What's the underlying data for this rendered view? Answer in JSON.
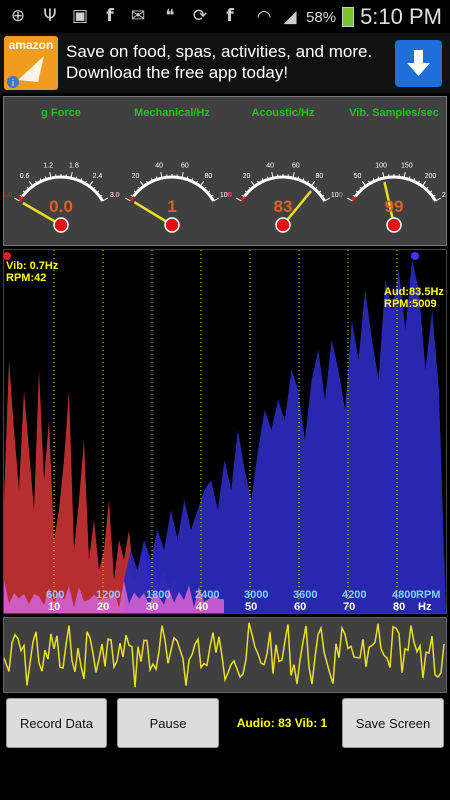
{
  "status_bar": {
    "icons": [
      "plus-icon",
      "usb-icon",
      "gallery-icon",
      "facebook-icon",
      "mail-icon",
      "hangouts-icon",
      "sync-icon",
      "facebook-icon",
      "wifi-icon",
      "signal-icon",
      "battery-charging-icon"
    ],
    "battery": "58%",
    "time": "5:10 PM"
  },
  "ad": {
    "logo_text": "amazon",
    "line1": "Save on food, spas, activities, and more.",
    "line2": "Download the free app today!",
    "download_icon": "download-arrow-icon",
    "info_icon": "info-icon"
  },
  "gauges": [
    {
      "title": "g Force",
      "value": "0.0",
      "ticks": [
        "0.0",
        "0.6",
        "1.2",
        "1.8",
        "2.4",
        "3.0"
      ],
      "level": 0.0
    },
    {
      "title": "Mechanical/Hz",
      "value": "1",
      "ticks": [
        "0",
        "20",
        "40",
        "60",
        "80",
        "100"
      ],
      "level": 0.01
    },
    {
      "title": "Acoustic/Hz",
      "value": "83",
      "ticks": [
        "0",
        "20",
        "40",
        "60",
        "80",
        "100"
      ],
      "level": 0.83
    },
    {
      "title": "Vib. Samples/sec",
      "value": "99",
      "ticks": [
        "0",
        "50",
        "100",
        "150",
        "200",
        "250"
      ],
      "level": 0.396
    }
  ],
  "spectrum": {
    "vib_label": "Vib: 0.7Hz",
    "vib_rpm": "RPM:42",
    "aud_label": "Aud:83.5Hz",
    "aud_rpm": "RPM:5009",
    "rpm_ticks": [
      "600",
      "1200",
      "1800",
      "2400",
      "3000",
      "3600",
      "4200",
      "4800",
      "RPM"
    ],
    "hz_ticks": [
      "10",
      "20",
      "30",
      "40",
      "50",
      "60",
      "70",
      "80",
      "Hz"
    ]
  },
  "controls": {
    "record_label": "Record Data",
    "pause_label": "Pause",
    "audio_vib_text": "Audio: 83 Vib: 1",
    "save_label": "Save Screen"
  }
}
